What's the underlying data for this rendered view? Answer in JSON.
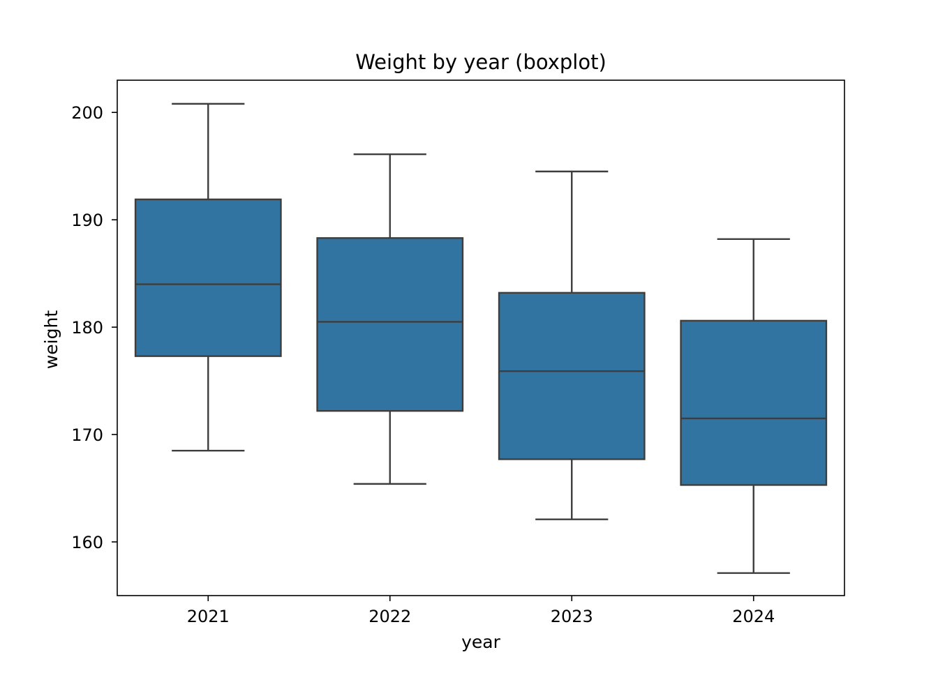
{
  "chart_data": {
    "type": "boxplot",
    "title": "Weight by year (boxplot)",
    "xlabel": "year",
    "ylabel": "weight",
    "categories": [
      "2021",
      "2022",
      "2023",
      "2024"
    ],
    "ylim": [
      155,
      203
    ],
    "yticks": [
      160,
      170,
      180,
      190,
      200
    ],
    "grid": false,
    "legend": "none",
    "colors": {
      "box_fill": "#3274a1",
      "box_line": "#3d3d3d",
      "axis": "#000000"
    },
    "boxes": [
      {
        "category": "2021",
        "whisker_low": 168.5,
        "q1": 177.3,
        "median": 184.0,
        "q3": 191.9,
        "whisker_high": 200.8
      },
      {
        "category": "2022",
        "whisker_low": 165.4,
        "q1": 172.2,
        "median": 180.5,
        "q3": 188.3,
        "whisker_high": 196.1
      },
      {
        "category": "2023",
        "whisker_low": 162.1,
        "q1": 167.7,
        "median": 175.9,
        "q3": 183.2,
        "whisker_high": 194.5
      },
      {
        "category": "2024",
        "whisker_low": 157.1,
        "q1": 165.3,
        "median": 171.5,
        "q3": 180.6,
        "whisker_high": 188.2
      }
    ]
  }
}
